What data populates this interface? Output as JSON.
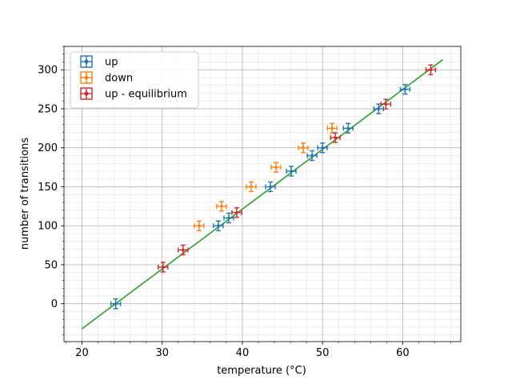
{
  "chart_data": {
    "type": "scatter",
    "title": "",
    "xlabel": "temperature (°C)",
    "ylabel": "number of transitions",
    "xlim": [
      17.75,
      67.25
    ],
    "ylim": [
      -48.5,
      330
    ],
    "x_ticks": [
      20,
      30,
      40,
      50,
      60
    ],
    "y_ticks": [
      0,
      50,
      100,
      150,
      200,
      250,
      300
    ],
    "x_minor_step": 2,
    "y_minor_step": 10,
    "grid": true,
    "minor_grid": true,
    "legend_position": "top-left",
    "series": [
      {
        "name": "up",
        "color": "#1f77b4",
        "marker": "errorbar-cross",
        "points": [
          {
            "x": 24.2,
            "y": 0
          },
          {
            "x": 37.0,
            "y": 100
          },
          {
            "x": 38.3,
            "y": 110
          },
          {
            "x": 43.5,
            "y": 150
          },
          {
            "x": 46.1,
            "y": 170
          },
          {
            "x": 48.7,
            "y": 190
          },
          {
            "x": 50.0,
            "y": 200
          },
          {
            "x": 53.2,
            "y": 225
          },
          {
            "x": 57.0,
            "y": 250
          },
          {
            "x": 60.3,
            "y": 275
          }
        ]
      },
      {
        "name": "down",
        "color": "#ff7f0e",
        "marker": "errorbar-cross",
        "points": [
          {
            "x": 34.6,
            "y": 100
          },
          {
            "x": 37.4,
            "y": 125
          },
          {
            "x": 41.1,
            "y": 150
          },
          {
            "x": 44.2,
            "y": 175
          },
          {
            "x": 47.6,
            "y": 200
          },
          {
            "x": 51.2,
            "y": 225
          }
        ]
      },
      {
        "name": "up - equilibrium",
        "color": "#d62728",
        "marker": "errorbar-cross",
        "points": [
          {
            "x": 30.1,
            "y": 47
          },
          {
            "x": 32.6,
            "y": 69
          },
          {
            "x": 39.3,
            "y": 117
          },
          {
            "x": 51.6,
            "y": 213
          },
          {
            "x": 57.9,
            "y": 256
          },
          {
            "x": 63.5,
            "y": 300
          }
        ]
      }
    ],
    "fit_line": {
      "color": "#2ca02c",
      "x": [
        20,
        65
      ],
      "y": [
        -32,
        313
      ]
    }
  }
}
